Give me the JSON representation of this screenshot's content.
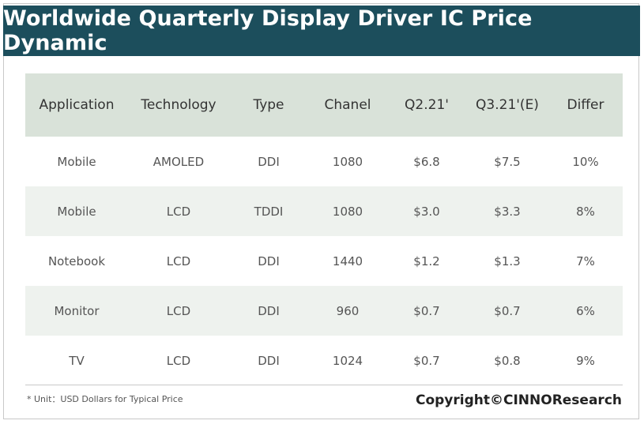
{
  "title": "Worldwide Quarterly Display Driver IC Price Dynamic",
  "chart_data": {
    "type": "table",
    "columns": [
      "Application",
      "Technology",
      "Type",
      "Chanel",
      "Q2.21'",
      "Q3.21'(E)",
      "Differ"
    ],
    "rows": [
      [
        "Mobile",
        "AMOLED",
        "DDI",
        "1080",
        "$6.8",
        "$7.5",
        "10%"
      ],
      [
        "Mobile",
        "LCD",
        "TDDI",
        "1080",
        "$3.0",
        "$3.3",
        "8%"
      ],
      [
        "Notebook",
        "LCD",
        "DDI",
        "1440",
        "$1.2",
        "$1.3",
        "7%"
      ],
      [
        "Monitor",
        "LCD",
        "DDI",
        "960",
        "$0.7",
        "$0.7",
        "6%"
      ],
      [
        "TV",
        "LCD",
        "DDI",
        "1024",
        "$0.7",
        "$0.8",
        "9%"
      ]
    ]
  },
  "footnote": "* Unit：USD Dollars for Typical Price",
  "copyright": "Copyright©CINNOResearch",
  "colors": {
    "title_bar": "#1c4e5c",
    "header_row": "#d9e2d9",
    "shaded_row": "#eef2ee"
  }
}
